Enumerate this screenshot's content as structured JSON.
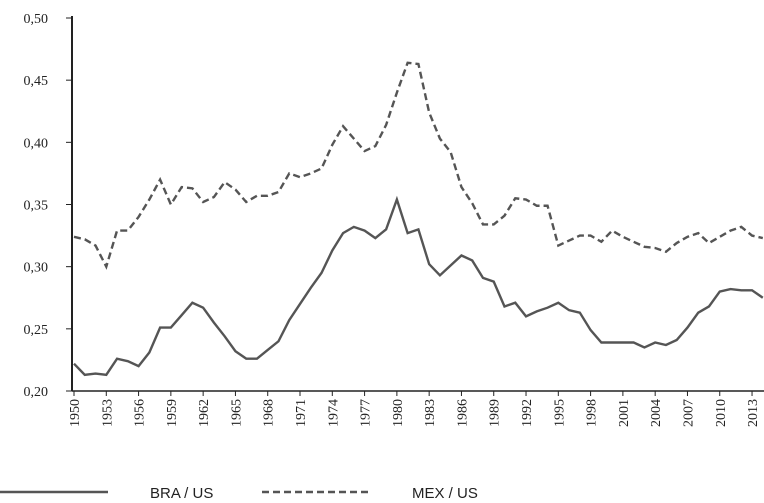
{
  "chart_data": {
    "type": "line",
    "x": [
      1950,
      1951,
      1952,
      1953,
      1954,
      1955,
      1956,
      1957,
      1958,
      1959,
      1960,
      1961,
      1962,
      1963,
      1964,
      1965,
      1966,
      1967,
      1968,
      1969,
      1970,
      1971,
      1972,
      1973,
      1974,
      1975,
      1976,
      1977,
      1978,
      1979,
      1980,
      1981,
      1982,
      1983,
      1984,
      1985,
      1986,
      1987,
      1988,
      1989,
      1990,
      1991,
      1992,
      1993,
      1994,
      1995,
      1996,
      1997,
      1998,
      1999,
      2000,
      2001,
      2002,
      2003,
      2004,
      2005,
      2006,
      2007,
      2008,
      2009,
      2010,
      2011,
      2012,
      2013,
      2014
    ],
    "series": [
      {
        "name": "BRA / US",
        "color": "#555555",
        "dashed": false,
        "values": [
          0.222,
          0.213,
          0.214,
          0.213,
          0.226,
          0.224,
          0.22,
          0.231,
          0.251,
          0.251,
          0.261,
          0.271,
          0.267,
          0.255,
          0.244,
          0.232,
          0.226,
          0.226,
          0.233,
          0.24,
          0.257,
          0.27,
          0.283,
          0.295,
          0.313,
          0.327,
          0.332,
          0.329,
          0.323,
          0.33,
          0.354,
          0.327,
          0.33,
          0.302,
          0.293,
          0.301,
          0.309,
          0.305,
          0.291,
          0.288,
          0.268,
          0.271,
          0.26,
          0.264,
          0.267,
          0.271,
          0.265,
          0.263,
          0.249,
          0.239,
          0.239,
          0.239,
          0.239,
          0.235,
          0.239,
          0.237,
          0.241,
          0.251,
          0.263,
          0.268,
          0.28,
          0.282,
          0.281,
          0.281,
          0.275
        ]
      },
      {
        "name": "MEX / US",
        "color": "#555555",
        "dashed": true,
        "values": [
          0.324,
          0.322,
          0.317,
          0.3,
          0.329,
          0.329,
          0.34,
          0.354,
          0.37,
          0.35,
          0.364,
          0.363,
          0.352,
          0.356,
          0.368,
          0.362,
          0.352,
          0.357,
          0.357,
          0.36,
          0.375,
          0.372,
          0.375,
          0.379,
          0.398,
          0.413,
          0.403,
          0.393,
          0.397,
          0.414,
          0.44,
          0.464,
          0.463,
          0.424,
          0.403,
          0.392,
          0.364,
          0.351,
          0.334,
          0.334,
          0.341,
          0.355,
          0.354,
          0.349,
          0.349,
          0.317,
          0.321,
          0.325,
          0.325,
          0.32,
          0.329,
          0.324,
          0.32,
          0.316,
          0.315,
          0.312,
          0.319,
          0.324,
          0.327,
          0.319,
          0.324,
          0.329,
          0.332,
          0.325,
          0.323
        ]
      }
    ],
    "xlim": [
      1950,
      2014
    ],
    "xticks": [
      1950,
      1953,
      1956,
      1959,
      1962,
      1965,
      1968,
      1971,
      1974,
      1977,
      1980,
      1983,
      1986,
      1989,
      1992,
      1995,
      1998,
      2001,
      2004,
      2007,
      2010,
      2013
    ],
    "ylim": [
      0.2,
      0.5
    ],
    "yticks": [
      {
        "value": 0.2,
        "label": "0,20"
      },
      {
        "value": 0.25,
        "label": "0,25"
      },
      {
        "value": 0.3,
        "label": "0,30"
      },
      {
        "value": 0.35,
        "label": "0,35"
      },
      {
        "value": 0.4,
        "label": "0,40"
      },
      {
        "value": 0.45,
        "label": "0,45"
      },
      {
        "value": 0.5,
        "label": "0,50"
      }
    ],
    "grid": false
  }
}
